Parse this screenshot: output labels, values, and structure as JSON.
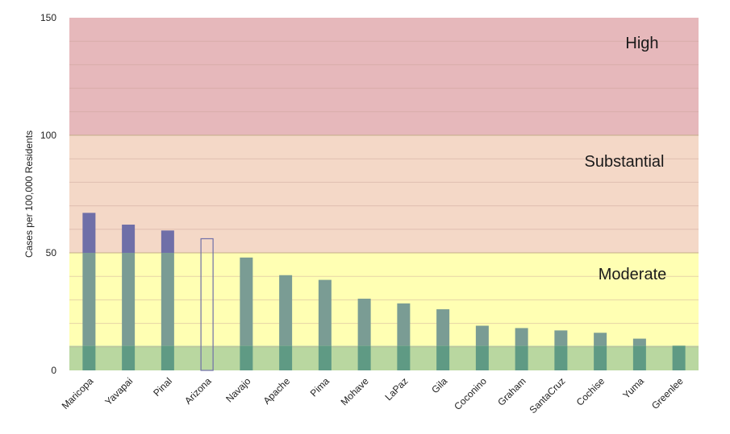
{
  "chart_data": {
    "type": "bar",
    "title": "",
    "ylabel": "Cases per 100,000 Residents",
    "ylim": [
      0,
      150
    ],
    "yticks": [
      0,
      50,
      100,
      150
    ],
    "grid": true,
    "categories": [
      "Maricopa",
      "Yavapai",
      "Pinal",
      "Arizona",
      "Navajo",
      "Apache",
      "Pima",
      "Mohave",
      "LaPaz",
      "Gila",
      "Coconino",
      "Graham",
      "SantaCruz",
      "Cochise",
      "Yuma",
      "Greenlee"
    ],
    "values": [
      67,
      62,
      59.5,
      56,
      48,
      40.5,
      38.5,
      30.5,
      28.5,
      26,
      19,
      18,
      17,
      16,
      13.5,
      10.5
    ],
    "outlined_category": "Arizona",
    "bands": [
      {
        "label": "",
        "from": 0,
        "to": 10.5,
        "color": "#b9d7a0"
      },
      {
        "label": "Moderate",
        "from": 10.5,
        "to": 50,
        "color": "#ffffb3"
      },
      {
        "label": "Substantial",
        "from": 50,
        "to": 100,
        "color": "#f4d8c7"
      },
      {
        "label": "High",
        "from": 100,
        "to": 150,
        "color": "#e6b8bb"
      }
    ],
    "bar_colors": {
      "above_moderate": "#6f6fa8",
      "within_moderate": "#7a9c94",
      "within_low": "#5f9a84",
      "outline": "#6f6fa8"
    }
  }
}
